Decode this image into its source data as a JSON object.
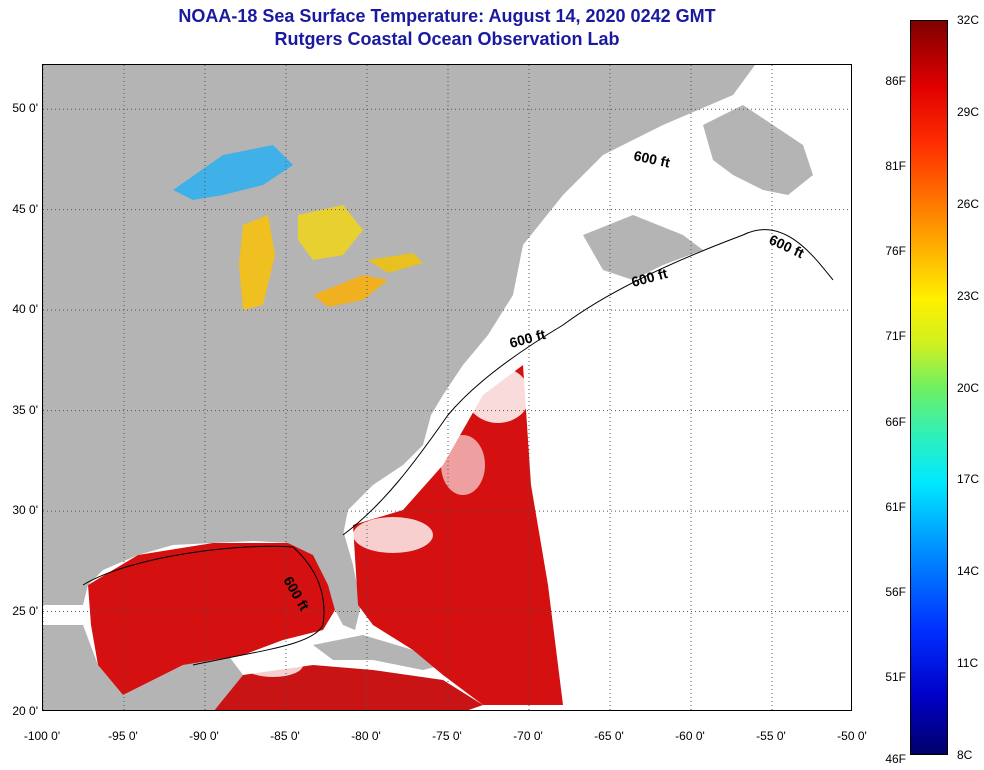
{
  "header": {
    "title_line1": "NOAA-18 Sea Surface Temperature:  August 14, 2020 0242 GMT",
    "title_line2": "Rutgers Coastal Ocean Observation Lab"
  },
  "map": {
    "lat_labels": [
      "50 0'",
      "45 0'",
      "40 0'",
      "35 0'",
      "30 0'",
      "25 0'",
      "20 0'"
    ],
    "lat_values": [
      50,
      45,
      40,
      35,
      30,
      25,
      20
    ],
    "lon_labels": [
      "-100 0'",
      "-95 0'",
      "-90 0'",
      "-85 0'",
      "-80 0'",
      "-75 0'",
      "-70 0'",
      "-65 0'",
      "-60 0'",
      "-55 0'",
      "-50 0'"
    ],
    "lon_values": [
      -100,
      -95,
      -90,
      -85,
      -80,
      -75,
      -70,
      -65,
      -60,
      -55,
      -50
    ],
    "extent": {
      "lon_min": -100,
      "lon_max": -50,
      "lat_min": 20,
      "lat_max": 52.2
    },
    "contour_labels": [
      "600 ft",
      "600 ft",
      "600 ft",
      "600 ft",
      "600 ft"
    ],
    "colors": {
      "land": "#b4b4b4",
      "no_data": "#ffffff",
      "warm_water": "#d81010",
      "lake_warm": "#e8c020",
      "lake_cool": "#30a0e0"
    }
  },
  "colorbar": {
    "celsius_labels": [
      "32C",
      "29C",
      "26C",
      "23C",
      "20C",
      "17C",
      "14C",
      "11C",
      "8C"
    ],
    "celsius_values": [
      32,
      29,
      26,
      23,
      20,
      17,
      14,
      11,
      8
    ],
    "fahrenheit_labels": [
      "86F",
      "81F",
      "76F",
      "71F",
      "66F",
      "61F",
      "56F",
      "51F",
      "46F"
    ],
    "fahrenheit_values": [
      86,
      81,
      76,
      71,
      66,
      61,
      56,
      51,
      46
    ],
    "range_c": [
      8,
      32
    ]
  }
}
